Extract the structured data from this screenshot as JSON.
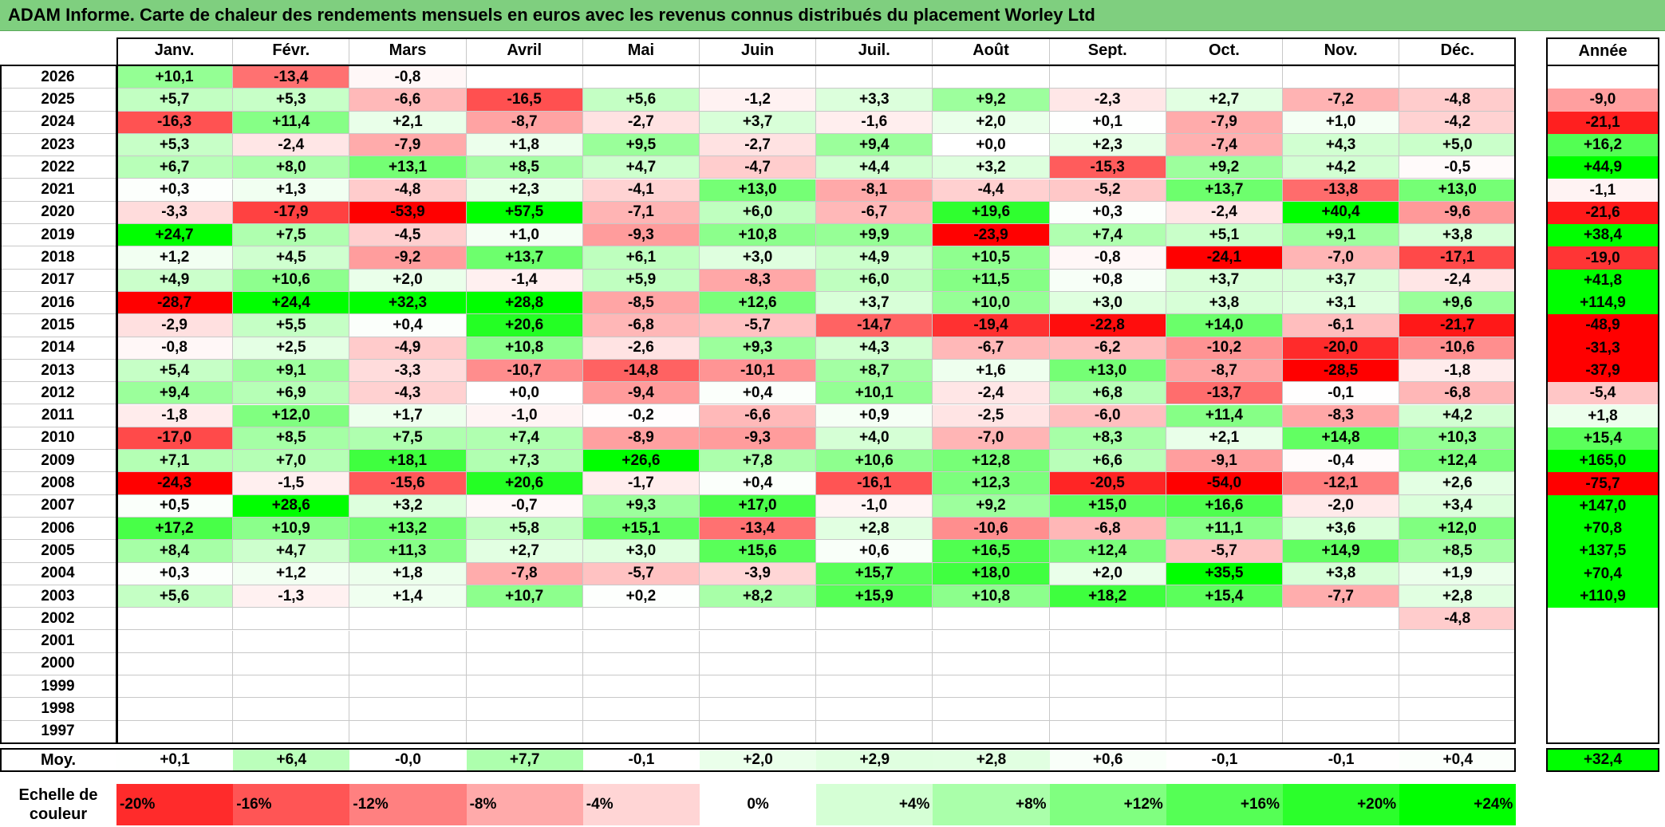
{
  "title": "ADAM Informe. Carte de chaleur des rendements mensuels en euros avec les revenus connus distribués du placement Worley Ltd",
  "months": [
    "Janv.",
    "Févr.",
    "Mars",
    "Avril",
    "Mai",
    "Juin",
    "Juil.",
    "Août",
    "Sept.",
    "Oct.",
    "Nov.",
    "Déc."
  ],
  "year_header": "Année",
  "avg_label": "Moy.",
  "scale_label_line1": "Echelle de",
  "scale_label_line2": "couleur",
  "scale": [
    {
      "label": "-20%",
      "v": -20,
      "align": "left"
    },
    {
      "label": "-16%",
      "v": -16,
      "align": "left"
    },
    {
      "label": "-12%",
      "v": -12,
      "align": "left"
    },
    {
      "label": "-8%",
      "v": -8,
      "align": "left"
    },
    {
      "label": "-4%",
      "v": -4,
      "align": "left"
    },
    {
      "label": "0%",
      "v": 0,
      "align": "center"
    },
    {
      "label": "+4%",
      "v": 4,
      "align": "right"
    },
    {
      "label": "+8%",
      "v": 8,
      "align": "right"
    },
    {
      "label": "+12%",
      "v": 12,
      "align": "right"
    },
    {
      "label": "+16%",
      "v": 16,
      "align": "right"
    },
    {
      "label": "+20%",
      "v": 20,
      "align": "right"
    },
    {
      "label": "+24%",
      "v": 24,
      "align": "right"
    }
  ],
  "chart_data": {
    "type": "heatmap",
    "title": "ADAM Informe. Carte de chaleur des rendements mensuels en euros avec les revenus connus distribués du placement Worley Ltd",
    "columns": [
      "Janv.",
      "Févr.",
      "Mars",
      "Avril",
      "Mai",
      "Juin",
      "Juil.",
      "Août",
      "Sept.",
      "Oct.",
      "Nov.",
      "Déc."
    ],
    "rows": [
      {
        "year": "2026",
        "values": [
          "+10,1",
          "-13,4",
          "-0,8",
          "",
          "",
          "",
          "",
          "",
          "",
          "",
          "",
          ""
        ],
        "annual": ""
      },
      {
        "year": "2025",
        "values": [
          "+5,7",
          "+5,3",
          "-6,6",
          "-16,5",
          "+5,6",
          "-1,2",
          "+3,3",
          "+9,2",
          "-2,3",
          "+2,7",
          "-7,2",
          "-4,8"
        ],
        "annual": "-9,0"
      },
      {
        "year": "2024",
        "values": [
          "-16,3",
          "+11,4",
          "+2,1",
          "-8,7",
          "-2,7",
          "+3,7",
          "-1,6",
          "+2,0",
          "+0,1",
          "-7,9",
          "+1,0",
          "-4,2"
        ],
        "annual": "-21,1"
      },
      {
        "year": "2023",
        "values": [
          "+5,3",
          "-2,4",
          "-7,9",
          "+1,8",
          "+9,5",
          "-2,7",
          "+9,4",
          "+0,0",
          "+2,3",
          "-7,4",
          "+4,3",
          "+5,0"
        ],
        "annual": "+16,2"
      },
      {
        "year": "2022",
        "values": [
          "+6,7",
          "+8,0",
          "+13,1",
          "+8,5",
          "+4,7",
          "-4,7",
          "+4,4",
          "+3,2",
          "-15,3",
          "+9,2",
          "+4,2",
          "-0,5"
        ],
        "annual": "+44,9"
      },
      {
        "year": "2021",
        "values": [
          "+0,3",
          "+1,3",
          "-4,8",
          "+2,3",
          "-4,1",
          "+13,0",
          "-8,1",
          "-4,4",
          "-5,2",
          "+13,7",
          "-13,8",
          "+13,0"
        ],
        "annual": "-1,1"
      },
      {
        "year": "2020",
        "values": [
          "-3,3",
          "-17,9",
          "-53,9",
          "+57,5",
          "-7,1",
          "+6,0",
          "-6,7",
          "+19,6",
          "+0,3",
          "-2,4",
          "+40,4",
          "-9,6"
        ],
        "annual": "-21,6"
      },
      {
        "year": "2019",
        "values": [
          "+24,7",
          "+7,5",
          "-4,5",
          "+1,0",
          "-9,3",
          "+10,8",
          "+9,9",
          "-23,9",
          "+7,4",
          "+5,1",
          "+9,1",
          "+3,8"
        ],
        "annual": "+38,4"
      },
      {
        "year": "2018",
        "values": [
          "+1,2",
          "+4,5",
          "-9,2",
          "+13,7",
          "+6,1",
          "+3,0",
          "+4,9",
          "+10,5",
          "-0,8",
          "-24,1",
          "-7,0",
          "-17,1"
        ],
        "annual": "-19,0"
      },
      {
        "year": "2017",
        "values": [
          "+4,9",
          "+10,6",
          "+2,0",
          "-1,4",
          "+5,9",
          "-8,3",
          "+6,0",
          "+11,5",
          "+0,8",
          "+3,7",
          "+3,7",
          "-2,4"
        ],
        "annual": "+41,8"
      },
      {
        "year": "2016",
        "values": [
          "-28,7",
          "+24,4",
          "+32,3",
          "+28,8",
          "-8,5",
          "+12,6",
          "+3,7",
          "+10,0",
          "+3,0",
          "+3,8",
          "+3,1",
          "+9,6"
        ],
        "annual": "+114,9"
      },
      {
        "year": "2015",
        "values": [
          "-2,9",
          "+5,5",
          "+0,4",
          "+20,6",
          "-6,8",
          "-5,7",
          "-14,7",
          "-19,4",
          "-22,8",
          "+14,0",
          "-6,1",
          "-21,7"
        ],
        "annual": "-48,9"
      },
      {
        "year": "2014",
        "values": [
          "-0,8",
          "+2,5",
          "-4,9",
          "+10,8",
          "-2,6",
          "+9,3",
          "+4,3",
          "-6,7",
          "-6,2",
          "-10,2",
          "-20,0",
          "-10,6"
        ],
        "annual": "-31,3"
      },
      {
        "year": "2013",
        "values": [
          "+5,4",
          "+9,1",
          "-3,3",
          "-10,7",
          "-14,8",
          "-10,1",
          "+8,7",
          "+1,6",
          "+13,0",
          "-8,7",
          "-28,5",
          "-1,8"
        ],
        "annual": "-37,9"
      },
      {
        "year": "2012",
        "values": [
          "+9,4",
          "+6,9",
          "-4,3",
          "+0,0",
          "-9,4",
          "+0,4",
          "+10,1",
          "-2,4",
          "+6,8",
          "-13,7",
          "-0,1",
          "-6,8"
        ],
        "annual": "-5,4"
      },
      {
        "year": "2011",
        "values": [
          "-1,8",
          "+12,0",
          "+1,7",
          "-1,0",
          "-0,2",
          "-6,6",
          "+0,9",
          "-2,5",
          "-6,0",
          "+11,4",
          "-8,3",
          "+4,2"
        ],
        "annual": "+1,8"
      },
      {
        "year": "2010",
        "values": [
          "-17,0",
          "+8,5",
          "+7,5",
          "+7,4",
          "-8,9",
          "-9,3",
          "+4,0",
          "-7,0",
          "+8,3",
          "+2,1",
          "+14,8",
          "+10,3"
        ],
        "annual": "+15,4"
      },
      {
        "year": "2009",
        "values": [
          "+7,1",
          "+7,0",
          "+18,1",
          "+7,3",
          "+26,6",
          "+7,8",
          "+10,6",
          "+12,8",
          "+6,6",
          "-9,1",
          "-0,4",
          "+12,4"
        ],
        "annual": "+165,0"
      },
      {
        "year": "2008",
        "values": [
          "-24,3",
          "-1,5",
          "-15,6",
          "+20,6",
          "-1,7",
          "+0,4",
          "-16,1",
          "+12,3",
          "-20,5",
          "-54,0",
          "-12,1",
          "+2,6"
        ],
        "annual": "-75,7"
      },
      {
        "year": "2007",
        "values": [
          "+0,5",
          "+28,6",
          "+3,2",
          "-0,7",
          "+9,3",
          "+17,0",
          "-1,0",
          "+9,2",
          "+15,0",
          "+16,6",
          "-2,0",
          "+3,4"
        ],
        "annual": "+147,0"
      },
      {
        "year": "2006",
        "values": [
          "+17,2",
          "+10,9",
          "+13,2",
          "+5,8",
          "+15,1",
          "-13,4",
          "+2,8",
          "-10,6",
          "-6,8",
          "+11,1",
          "+3,6",
          "+12,0"
        ],
        "annual": "+70,8"
      },
      {
        "year": "2005",
        "values": [
          "+8,4",
          "+4,7",
          "+11,3",
          "+2,7",
          "+3,0",
          "+15,6",
          "+0,6",
          "+16,5",
          "+12,4",
          "-5,7",
          "+14,9",
          "+8,5"
        ],
        "annual": "+137,5"
      },
      {
        "year": "2004",
        "values": [
          "+0,3",
          "+1,2",
          "+1,8",
          "-7,8",
          "-5,7",
          "-3,9",
          "+15,7",
          "+18,0",
          "+2,0",
          "+35,5",
          "+3,8",
          "+1,9"
        ],
        "annual": "+70,4"
      },
      {
        "year": "2003",
        "values": [
          "+5,6",
          "-1,3",
          "+1,4",
          "+10,7",
          "+0,2",
          "+8,2",
          "+15,9",
          "+10,8",
          "+18,2",
          "+15,4",
          "-7,7",
          "+2,8"
        ],
        "annual": "+110,9"
      },
      {
        "year": "2002",
        "values": [
          "",
          "",
          "",
          "",
          "",
          "",
          "",
          "",
          "",
          "",
          "",
          "-4,8"
        ],
        "annual": ""
      },
      {
        "year": "2001",
        "values": [
          "",
          "",
          "",
          "",
          "",
          "",
          "",
          "",
          "",
          "",
          "",
          ""
        ],
        "annual": ""
      },
      {
        "year": "2000",
        "values": [
          "",
          "",
          "",
          "",
          "",
          "",
          "",
          "",
          "",
          "",
          "",
          ""
        ],
        "annual": ""
      },
      {
        "year": "1999",
        "values": [
          "",
          "",
          "",
          "",
          "",
          "",
          "",
          "",
          "",
          "",
          "",
          ""
        ],
        "annual": ""
      },
      {
        "year": "1998",
        "values": [
          "",
          "",
          "",
          "",
          "",
          "",
          "",
          "",
          "",
          "",
          "",
          ""
        ],
        "annual": ""
      },
      {
        "year": "1997",
        "values": [
          "",
          "",
          "",
          "",
          "",
          "",
          "",
          "",
          "",
          "",
          "",
          ""
        ],
        "annual": ""
      }
    ],
    "averages": [
      "+0,1",
      "+6,4",
      "-0,0",
      "+7,7",
      "-0,1",
      "+2,0",
      "+2,9",
      "+2,8",
      "+0,6",
      "-0,1",
      "-0,1",
      "+0,4"
    ],
    "average_annual": "+32,4"
  }
}
